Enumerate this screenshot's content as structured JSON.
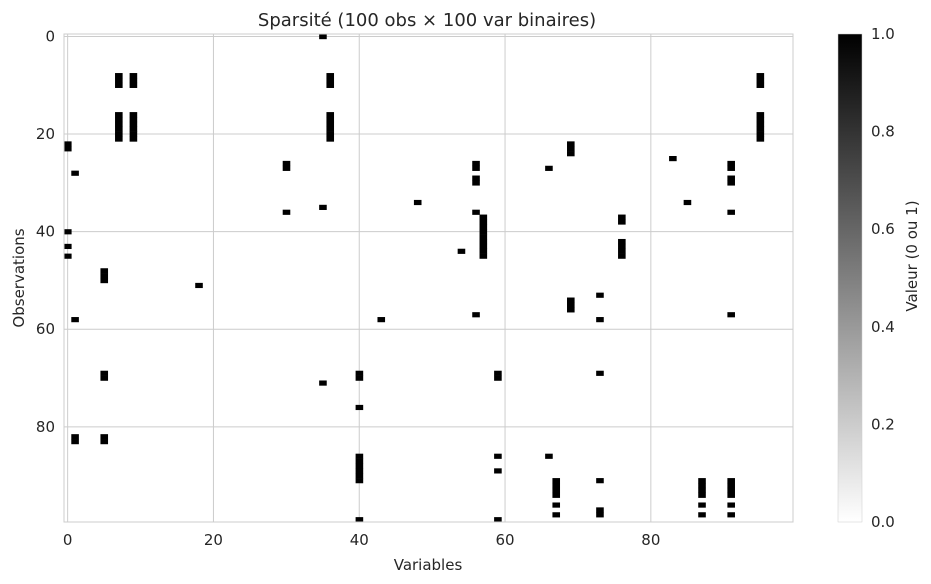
{
  "chart_data": {
    "type": "heatmap",
    "title": "Sparsité (100 obs × 100 var binaires)",
    "xlabel": "Variables",
    "ylabel": "Observations",
    "xlim": [
      -0.5,
      99.5
    ],
    "ylim": [
      99.5,
      -0.5
    ],
    "x_ticks": [
      0,
      20,
      40,
      60,
      80
    ],
    "y_ticks": [
      0,
      20,
      40,
      60,
      80
    ],
    "grid": true,
    "colormap": "Greys (0 = white, 1 = black)",
    "colorbar": {
      "label": "Valeur (0 ou 1)",
      "range": [
        0,
        1
      ],
      "ticks": [
        "0.0",
        "0.2",
        "0.4",
        "0.6",
        "0.8",
        "1.0"
      ]
    },
    "ones": [
      [
        35,
        0
      ],
      [
        7,
        8
      ],
      [
        7,
        9
      ],
      [
        7,
        10
      ],
      [
        9,
        8
      ],
      [
        9,
        9
      ],
      [
        9,
        10
      ],
      [
        36,
        8
      ],
      [
        36,
        9
      ],
      [
        36,
        10
      ],
      [
        95,
        8
      ],
      [
        95,
        9
      ],
      [
        95,
        10
      ],
      [
        7,
        16
      ],
      [
        7,
        17
      ],
      [
        7,
        18
      ],
      [
        7,
        19
      ],
      [
        7,
        20
      ],
      [
        7,
        21
      ],
      [
        9,
        16
      ],
      [
        9,
        17
      ],
      [
        9,
        18
      ],
      [
        9,
        19
      ],
      [
        9,
        20
      ],
      [
        9,
        21
      ],
      [
        36,
        16
      ],
      [
        36,
        17
      ],
      [
        36,
        18
      ],
      [
        36,
        19
      ],
      [
        36,
        20
      ],
      [
        36,
        21
      ],
      [
        95,
        16
      ],
      [
        95,
        17
      ],
      [
        95,
        18
      ],
      [
        95,
        19
      ],
      [
        95,
        20
      ],
      [
        95,
        21
      ],
      [
        0,
        22
      ],
      [
        0,
        23
      ],
      [
        69,
        22
      ],
      [
        69,
        23
      ],
      [
        69,
        24
      ],
      [
        83,
        25
      ],
      [
        30,
        26
      ],
      [
        30,
        27
      ],
      [
        56,
        26
      ],
      [
        56,
        27
      ],
      [
        66,
        27
      ],
      [
        91,
        26
      ],
      [
        91,
        27
      ],
      [
        1,
        28
      ],
      [
        56,
        29
      ],
      [
        56,
        30
      ],
      [
        91,
        29
      ],
      [
        91,
        30
      ],
      [
        48,
        34
      ],
      [
        85,
        34
      ],
      [
        35,
        35
      ],
      [
        30,
        36
      ],
      [
        56,
        36
      ],
      [
        91,
        36
      ],
      [
        57,
        37
      ],
      [
        57,
        38
      ],
      [
        57,
        39
      ],
      [
        76,
        37
      ],
      [
        76,
        38
      ],
      [
        0,
        40
      ],
      [
        57,
        40
      ],
      [
        57,
        41
      ],
      [
        57,
        42
      ],
      [
        57,
        43
      ],
      [
        57,
        44
      ],
      [
        57,
        45
      ],
      [
        76,
        42
      ],
      [
        76,
        43
      ],
      [
        76,
        44
      ],
      [
        76,
        45
      ],
      [
        0,
        43
      ],
      [
        54,
        44
      ],
      [
        0,
        45
      ],
      [
        5,
        48
      ],
      [
        5,
        49
      ],
      [
        5,
        50
      ],
      [
        18,
        51
      ],
      [
        73,
        53
      ],
      [
        69,
        54
      ],
      [
        69,
        55
      ],
      [
        69,
        56
      ],
      [
        56,
        57
      ],
      [
        91,
        57
      ],
      [
        1,
        58
      ],
      [
        43,
        58
      ],
      [
        73,
        58
      ],
      [
        5,
        69
      ],
      [
        5,
        70
      ],
      [
        40,
        69
      ],
      [
        40,
        70
      ],
      [
        59,
        69
      ],
      [
        59,
        70
      ],
      [
        73,
        69
      ],
      [
        35,
        71
      ],
      [
        40,
        76
      ],
      [
        1,
        82
      ],
      [
        1,
        83
      ],
      [
        5,
        82
      ],
      [
        5,
        83
      ],
      [
        59,
        86
      ],
      [
        66,
        86
      ],
      [
        40,
        86
      ],
      [
        40,
        87
      ],
      [
        40,
        88
      ],
      [
        40,
        89
      ],
      [
        40,
        90
      ],
      [
        40,
        91
      ],
      [
        59,
        89
      ],
      [
        67,
        91
      ],
      [
        67,
        92
      ],
      [
        67,
        93
      ],
      [
        67,
        94
      ],
      [
        73,
        91
      ],
      [
        87,
        91
      ],
      [
        87,
        92
      ],
      [
        87,
        93
      ],
      [
        87,
        94
      ],
      [
        91,
        91
      ],
      [
        91,
        92
      ],
      [
        91,
        93
      ],
      [
        91,
        94
      ],
      [
        67,
        96
      ],
      [
        87,
        96
      ],
      [
        91,
        96
      ],
      [
        67,
        98
      ],
      [
        73,
        97
      ],
      [
        73,
        98
      ],
      [
        87,
        98
      ],
      [
        91,
        98
      ],
      [
        40,
        99
      ],
      [
        59,
        99
      ]
    ]
  }
}
